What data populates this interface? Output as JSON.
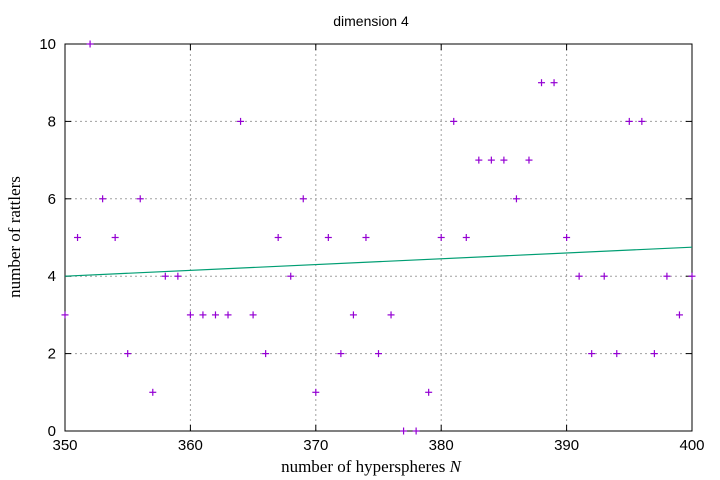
{
  "chart_data": {
    "type": "scatter",
    "title": "dimension 4",
    "xlabel": "number of hyperspheres",
    "xlabel_var": "N",
    "ylabel": "number of rattlers",
    "xlim": [
      350,
      400
    ],
    "ylim": [
      0,
      10
    ],
    "xticks": [
      350,
      360,
      370,
      380,
      390,
      400
    ],
    "yticks": [
      0,
      2,
      4,
      6,
      8,
      10
    ],
    "grid": true,
    "series": [
      {
        "kind": "points",
        "marker": "plus",
        "color": "#9400d3",
        "x": [
          350,
          351,
          352,
          353,
          354,
          355,
          356,
          357,
          358,
          359,
          360,
          361,
          362,
          363,
          364,
          365,
          366,
          367,
          368,
          369,
          370,
          371,
          372,
          373,
          374,
          375,
          376,
          377,
          378,
          379,
          380,
          381,
          382,
          383,
          384,
          385,
          386,
          387,
          388,
          389,
          390,
          391,
          392,
          393,
          394,
          395,
          396,
          397,
          398,
          399,
          400
        ],
        "y": [
          3,
          5,
          10,
          6,
          5,
          2,
          6,
          1,
          4,
          4,
          3,
          3,
          3,
          3,
          8,
          3,
          2,
          5,
          4,
          6,
          1,
          5,
          2,
          3,
          5,
          2,
          3,
          0,
          0,
          1,
          5,
          8,
          5,
          7,
          7,
          7,
          6,
          7,
          9,
          9,
          5,
          4,
          2,
          4,
          2,
          8,
          8,
          2,
          4,
          3,
          4
        ]
      },
      {
        "kind": "line",
        "color": "#009e73",
        "x": [
          350,
          400
        ],
        "y": [
          4.0,
          4.75
        ]
      }
    ]
  }
}
